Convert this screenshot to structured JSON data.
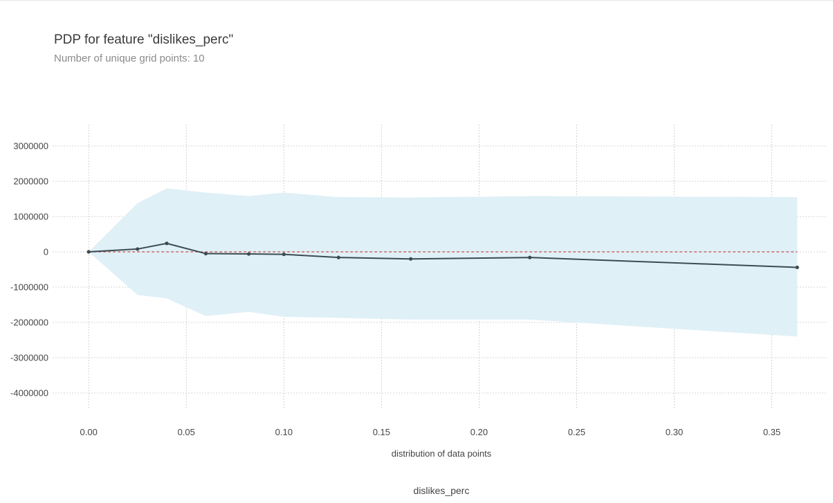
{
  "title": "PDP for feature \"dislikes_perc\"",
  "subtitle": "Number of unique grid points: 10",
  "xlabel_inner": "distribution of data points",
  "xlabel_outer": "dislikes_perc",
  "colors": {
    "line": "#3c4a52",
    "band": "#dff0f7",
    "zero_line": "#c0504d",
    "grid": "#c8c8c8",
    "tick_text": "#444444"
  },
  "chart_data": {
    "type": "line",
    "x": [
      0.0,
      0.025,
      0.04,
      0.06,
      0.082,
      0.1,
      0.128,
      0.165,
      0.226,
      0.363
    ],
    "series": [
      {
        "values": [
          0,
          80000,
          240000,
          -50000,
          -60000,
          -70000,
          -160000,
          -200000,
          -160000,
          -440000
        ]
      }
    ],
    "band_upper": [
      0,
      1380000,
      1800000,
      1680000,
      1580000,
      1680000,
      1550000,
      1540000,
      1580000,
      1550000
    ],
    "band_lower": [
      0,
      -1220000,
      -1320000,
      -1820000,
      -1700000,
      -1840000,
      -1870000,
      -1920000,
      -1920000,
      -2400000
    ],
    "xticks": [
      "0.00",
      "0.05",
      "0.10",
      "0.15",
      "0.20",
      "0.25",
      "0.30",
      "0.35"
    ],
    "xtick_values": [
      0.0,
      0.05,
      0.1,
      0.15,
      0.2,
      0.25,
      0.3,
      0.35
    ],
    "yticks": [
      "3000000",
      "2000000",
      "1000000",
      "0",
      "-1000000",
      "-2000000",
      "-3000000",
      "-4000000"
    ],
    "ytick_values": [
      3000000,
      2000000,
      1000000,
      0,
      -1000000,
      -2000000,
      -3000000,
      -4000000
    ],
    "xlim": [
      -0.0185,
      0.3785
    ],
    "ylim": [
      -4000000,
      3000000
    ],
    "reference_line": 0,
    "grid": true
  }
}
